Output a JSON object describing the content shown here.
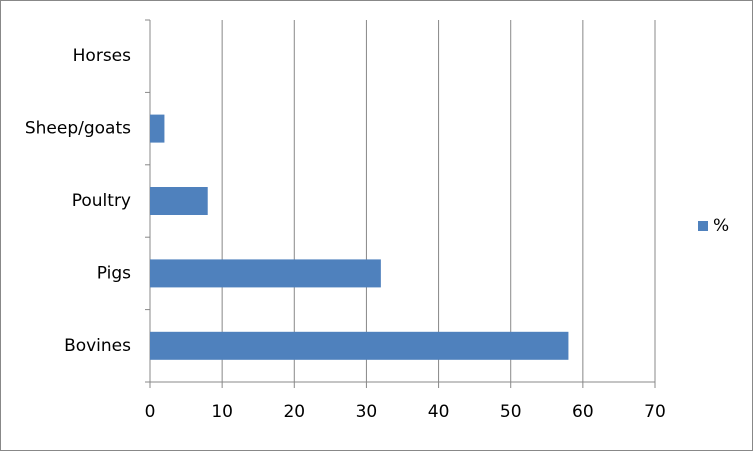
{
  "chart_data": {
    "type": "barh",
    "categories": [
      "Bovines",
      "Pigs",
      "Poultry",
      "Sheep/goats",
      "Horses"
    ],
    "series": [
      {
        "name": "%",
        "color": "#4f81bd",
        "values": [
          58,
          32,
          8,
          2,
          0
        ]
      }
    ],
    "xlim": [
      0,
      70
    ],
    "xticks": [
      0,
      10,
      20,
      30,
      40,
      50,
      60,
      70
    ],
    "grid": true,
    "legend": "right"
  }
}
